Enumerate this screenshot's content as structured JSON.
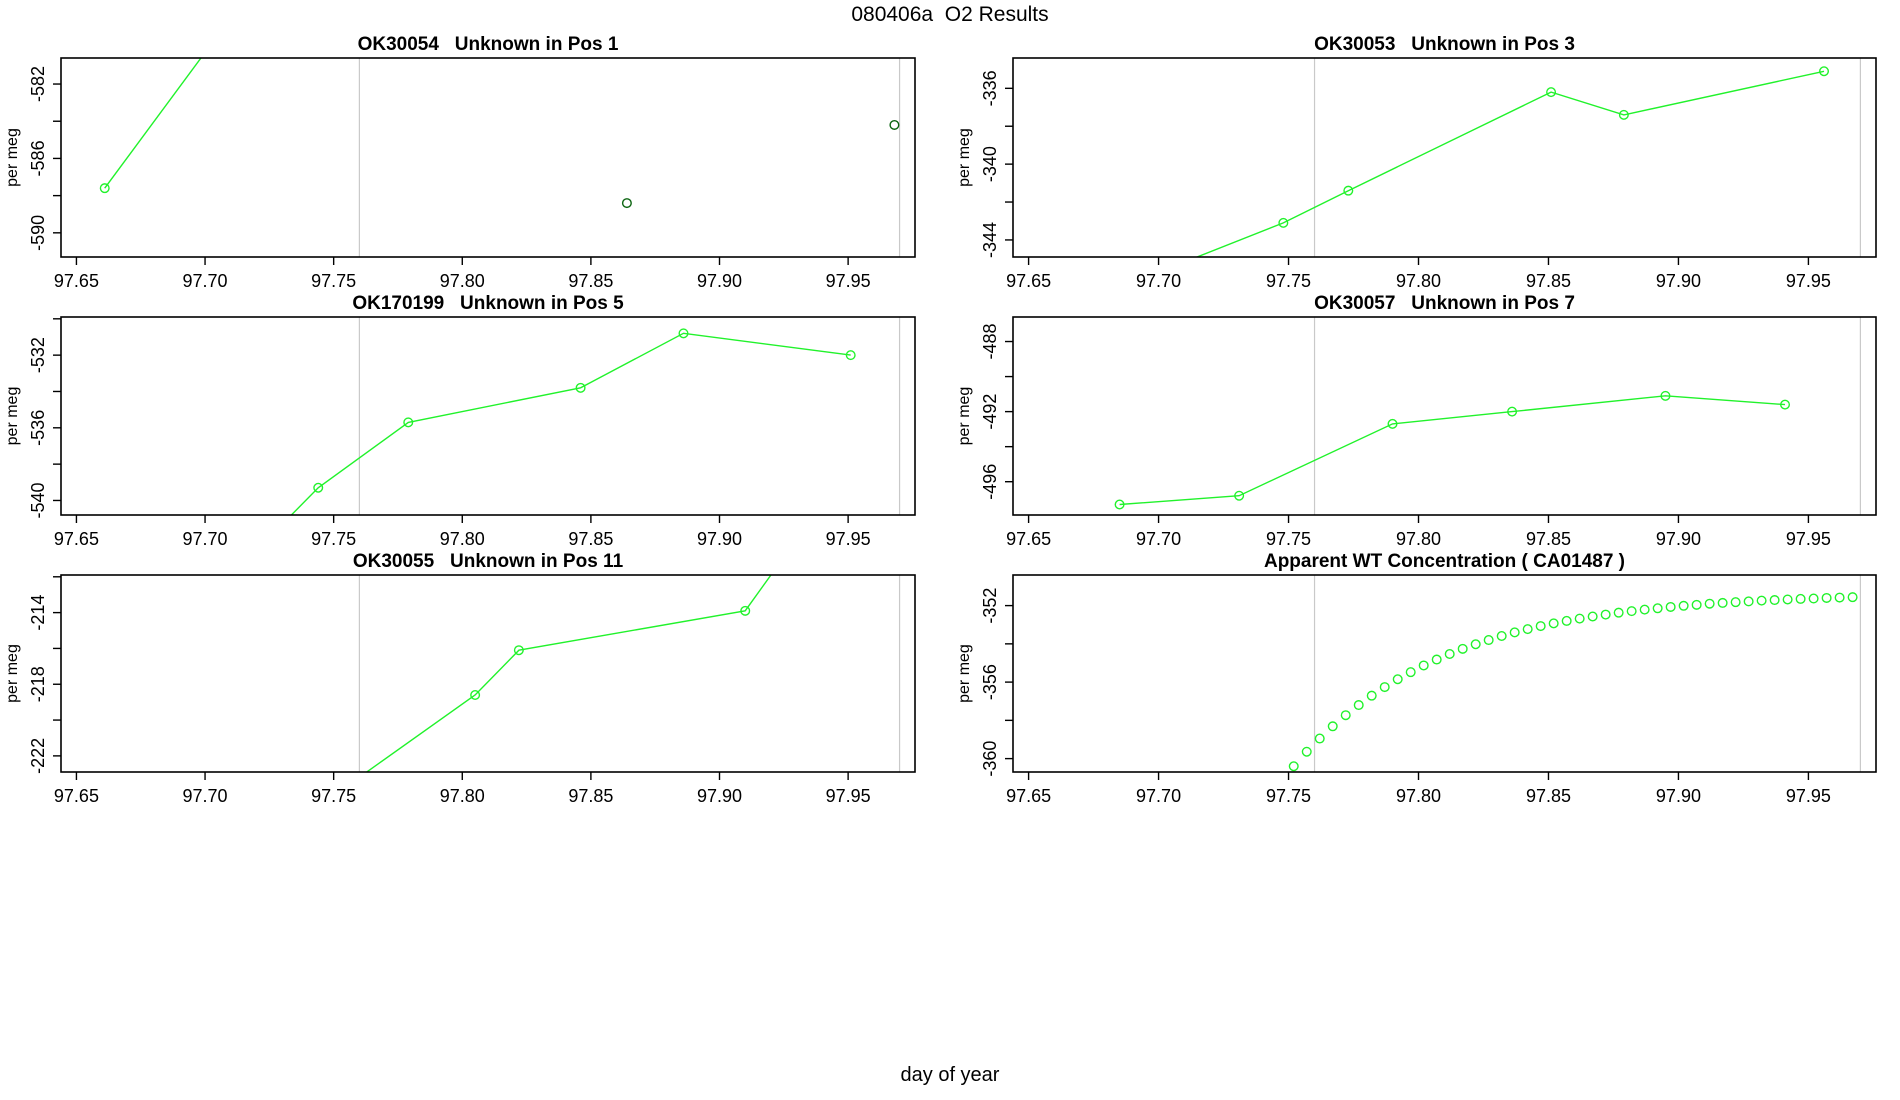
{
  "page_title": "080406a  O2 Results",
  "xlabel": "day of year",
  "colors": {
    "series_green": "#21f22b",
    "flagged_dark_green": "#0b6410",
    "reference_line_gray": "#c9c9c9",
    "axis_black": "#000000",
    "background": "#ffffff"
  },
  "x_axis": {
    "lim": [
      97.644,
      97.976
    ],
    "ticks": [
      97.65,
      97.7,
      97.75,
      97.8,
      97.85,
      97.9,
      97.95
    ]
  },
  "reference_lines_x": [
    97.76,
    97.97
  ],
  "chart_data": [
    {
      "id": "ok30054-pos1",
      "type": "line",
      "title": "OK30054   Unknown in Pos 1",
      "ylabel": "per meg",
      "ylim": [
        -591.3,
        -580.6
      ],
      "yticks_all": [
        -590,
        -588,
        -586,
        -584,
        -582
      ],
      "yticks_labeled": [
        -590,
        -586,
        -582
      ],
      "series": [
        {
          "name": "sample-run",
          "line": true,
          "marker": "circle",
          "color_key": "series_green",
          "points": [
            [
              97.661,
              -587.6
            ],
            [
              97.715,
              -577.5
            ]
          ]
        },
        {
          "name": "flagged-points",
          "line": false,
          "marker": "circle",
          "color_key": "flagged_dark_green",
          "points": [
            [
              97.864,
              -588.4
            ],
            [
              97.968,
              -584.2
            ]
          ]
        }
      ]
    },
    {
      "id": "ok30053-pos3",
      "type": "line",
      "title": "OK30053   Unknown in Pos 3",
      "ylabel": "per meg",
      "ylim": [
        -344.9,
        -334.4
      ],
      "yticks_all": [
        -344,
        -342,
        -340,
        -338,
        -336
      ],
      "yticks_labeled": [
        -344,
        -340,
        -336
      ],
      "series": [
        {
          "name": "sample-run",
          "line": true,
          "marker": "circle",
          "color_key": "series_green",
          "points": [
            [
              97.7,
              -345.7
            ],
            [
              97.748,
              -343.1
            ],
            [
              97.773,
              -341.4
            ],
            [
              97.851,
              -336.2
            ],
            [
              97.879,
              -337.4
            ],
            [
              97.956,
              -335.1
            ]
          ]
        }
      ]
    },
    {
      "id": "ok170199-pos5",
      "type": "line",
      "title": "OK170199   Unknown in Pos 5",
      "ylabel": "per meg",
      "ylim": [
        -540.8,
        -529.9
      ],
      "yticks_all": [
        -540,
        -538,
        -536,
        -534,
        -532,
        -530
      ],
      "yticks_labeled": [
        -540,
        -536,
        -532
      ],
      "series": [
        {
          "name": "sample-run",
          "line": true,
          "marker": "circle",
          "color_key": "series_green",
          "points": [
            [
              97.728,
              -541.6
            ],
            [
              97.744,
              -539.3
            ],
            [
              97.779,
              -535.7
            ],
            [
              97.846,
              -533.8
            ],
            [
              97.886,
              -530.8
            ],
            [
              97.951,
              -532.0
            ]
          ]
        }
      ]
    },
    {
      "id": "ok30057-pos7",
      "type": "line",
      "title": "OK30057   Unknown in Pos 7",
      "ylabel": "per meg",
      "ylim": [
        -497.9,
        -486.6
      ],
      "yticks_all": [
        -496,
        -494,
        -492,
        -490,
        -488
      ],
      "yticks_labeled": [
        -496,
        -492,
        -488
      ],
      "series": [
        {
          "name": "sample-run",
          "line": true,
          "marker": "circle",
          "color_key": "series_green",
          "points": [
            [
              97.685,
              -497.3
            ],
            [
              97.731,
              -496.8
            ],
            [
              97.79,
              -492.7
            ],
            [
              97.836,
              -492.0
            ],
            [
              97.895,
              -491.1
            ],
            [
              97.941,
              -491.6
            ]
          ]
        }
      ]
    },
    {
      "id": "ok30055-pos11",
      "type": "line",
      "title": "OK30055   Unknown in Pos 11",
      "ylabel": "per meg",
      "ylim": [
        -222.9,
        -211.9
      ],
      "yticks_all": [
        -222,
        -220,
        -218,
        -216,
        -214,
        -212
      ],
      "yticks_labeled": [
        -222,
        -218,
        -214
      ],
      "series": [
        {
          "name": "sample-run",
          "line": true,
          "marker": "circle",
          "color_key": "series_green",
          "points": [
            [
              97.757,
              -223.5
            ],
            [
              97.805,
              -218.6
            ],
            [
              97.822,
              -216.1
            ],
            [
              97.91,
              -213.9
            ],
            [
              97.927,
              -210.5
            ]
          ]
        }
      ]
    },
    {
      "id": "apparent-wt-ca01487",
      "type": "scatter",
      "title": "Apparent WT Concentration ( CA01487 )",
      "ylabel": "per meg",
      "ylim": [
        -360.7,
        -350.4
      ],
      "yticks_all": [
        -360,
        -358,
        -356,
        -354,
        -352
      ],
      "yticks_labeled": [
        -360,
        -356,
        -352
      ],
      "series": [
        {
          "name": "wt-concentration-curve",
          "line": false,
          "marker": "circle",
          "color_key": "series_green",
          "points": [
            [
              97.752,
              -360.4
            ],
            [
              97.757,
              -359.64
            ],
            [
              97.762,
              -358.95
            ],
            [
              97.767,
              -358.31
            ],
            [
              97.772,
              -357.73
            ],
            [
              97.777,
              -357.2
            ],
            [
              97.782,
              -356.71
            ],
            [
              97.787,
              -356.26
            ],
            [
              97.792,
              -355.85
            ],
            [
              97.797,
              -355.48
            ],
            [
              97.802,
              -355.13
            ],
            [
              97.807,
              -354.82
            ],
            [
              97.812,
              -354.53
            ],
            [
              97.817,
              -354.26
            ],
            [
              97.822,
              -354.02
            ],
            [
              97.827,
              -353.8
            ],
            [
              97.832,
              -353.59
            ],
            [
              97.837,
              -353.4
            ],
            [
              97.842,
              -353.23
            ],
            [
              97.847,
              -353.07
            ],
            [
              97.852,
              -352.93
            ],
            [
              97.857,
              -352.8
            ],
            [
              97.862,
              -352.68
            ],
            [
              97.867,
              -352.57
            ],
            [
              97.872,
              -352.47
            ],
            [
              97.877,
              -352.37
            ],
            [
              97.882,
              -352.29
            ],
            [
              97.887,
              -352.21
            ],
            [
              97.892,
              -352.14
            ],
            [
              97.897,
              -352.07
            ],
            [
              97.902,
              -352.01
            ],
            [
              97.907,
              -351.96
            ],
            [
              97.912,
              -351.9
            ],
            [
              97.917,
              -351.86
            ],
            [
              97.922,
              -351.82
            ],
            [
              97.927,
              -351.78
            ],
            [
              97.932,
              -351.74
            ],
            [
              97.937,
              -351.71
            ],
            [
              97.942,
              -351.68
            ],
            [
              97.947,
              -351.65
            ],
            [
              97.952,
              -351.63
            ],
            [
              97.957,
              -351.6
            ],
            [
              97.962,
              -351.58
            ],
            [
              97.967,
              -351.56
            ]
          ]
        }
      ]
    }
  ]
}
